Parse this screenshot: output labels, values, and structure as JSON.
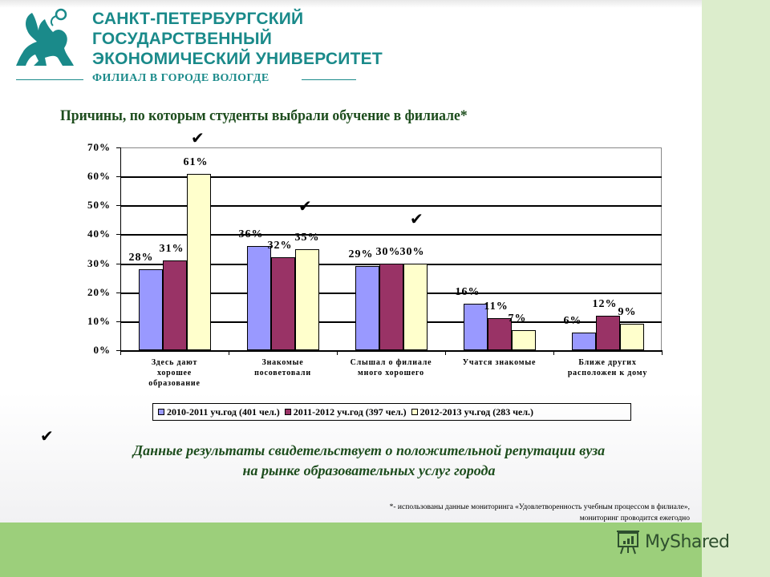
{
  "header": {
    "logo": {
      "line1": "САНКТ-ПЕТЕРБУРГСКИЙ",
      "line2": "ГОСУДАРСТВЕННЫЙ",
      "line3": "ЭКОНОМИЧЕСКИЙ УНИВЕРСИТЕТ",
      "subtitle": "ФИЛИАЛ В ГОРОДЕ ВОЛОГДЕ",
      "icon": "griffin-icon",
      "color": "#1a8a8a"
    }
  },
  "chart_data": {
    "type": "bar",
    "title": "Причины, по которым студенты выбрали обучение в филиале*",
    "xlabel": "",
    "ylabel": "",
    "ylim": [
      0,
      70
    ],
    "y_ticks": [
      "0%",
      "10%",
      "20%",
      "30%",
      "40%",
      "50%",
      "60%",
      "70%"
    ],
    "grid": true,
    "legend_position": "bottom",
    "categories": [
      "Здесь дают хорошее образование",
      "Знакомые посоветовали",
      "Слышал о филиале много хорошего",
      "Учатся знакомые",
      "Ближе других расположен к дому"
    ],
    "series": [
      {
        "name": "2010-2011 уч.год (401 чел.)",
        "color": "#9999ff",
        "values": [
          28,
          36,
          29,
          16,
          6
        ]
      },
      {
        "name": "2011-2012 уч.год (397 чел.)",
        "color": "#993366",
        "values": [
          31,
          32,
          30,
          11,
          12
        ]
      },
      {
        "name": "2012-2013 уч.год (283 чел.)",
        "color": "#ffffcc",
        "values": [
          61,
          35,
          30,
          7,
          9
        ]
      }
    ],
    "annotations": [
      "✔ над категорией 1",
      "✔ над категорией 2",
      "✔ над категорией 3"
    ]
  },
  "chart": {
    "title": "Причины, по которым студенты выбрали обучение в филиале*",
    "y_ticks": [
      "70%",
      "60%",
      "50%",
      "40%",
      "30%",
      "20%",
      "10%",
      "0%"
    ],
    "categories": [
      [
        "Здесь дают",
        "хорошее",
        "образование"
      ],
      [
        "Знакомые",
        "посоветовали"
      ],
      [
        "Слышал о филиале",
        "много хорошего"
      ],
      [
        "Учатся знакомые"
      ],
      [
        "Ближе других",
        "расположен к дому"
      ]
    ],
    "legend": [
      "2010-2011 уч.год (401 чел.)",
      "2011-2012 уч.год (397 чел.)",
      "2012-2013 уч.год (283 чел.)"
    ],
    "labels": {
      "s0": [
        "28%",
        "36%",
        "29%",
        "16%",
        "6%"
      ],
      "s1": [
        "31%",
        "32%",
        "30%",
        "11%",
        "12%"
      ],
      "s2": [
        "61%",
        "35%",
        "30%",
        "7%",
        "9%"
      ]
    }
  },
  "check_icon": "✔",
  "conclusion": {
    "line1": "Данные результаты свидетельствует о  положительной репутации вуза",
    "line2": "на рынке образовательных услуг города"
  },
  "footnote": {
    "line1": "*- использованы данные мониторинга «Удовлетворенность учебным процессом в филиале»,",
    "line2": "мониторинг проводится ежегодно"
  },
  "watermark": {
    "text": "MyShared",
    "icon": "presentation-board-icon"
  },
  "colors": {
    "title_green": "#1d4d1d",
    "band_green": "#9ccf7b",
    "strip_green": "#dcedcc",
    "teal": "#1a8a8a"
  }
}
